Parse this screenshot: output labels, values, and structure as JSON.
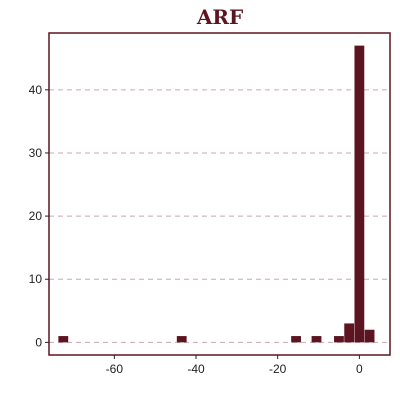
{
  "chart_data": {
    "type": "bar",
    "title": "ARF",
    "xlabel": "",
    "ylabel": "",
    "xlim": [
      -76,
      7.5
    ],
    "ylim": [
      -2,
      49
    ],
    "x_ticks": [
      -60,
      -40,
      -20,
      0
    ],
    "y_ticks": [
      0,
      10,
      20,
      30,
      40
    ],
    "bin_width": 2.4,
    "bins": [
      {
        "x": -72.5,
        "value": 1
      },
      {
        "x": -43.5,
        "value": 1
      },
      {
        "x": -15.5,
        "value": 1
      },
      {
        "x": -10.5,
        "value": 1
      },
      {
        "x": -5,
        "value": 1
      },
      {
        "x": -2.5,
        "value": 3
      },
      {
        "x": 0,
        "value": 47
      },
      {
        "x": 2.5,
        "value": 2
      }
    ],
    "grid": "horizontal-dashed",
    "colors": {
      "bar": "#5c1520",
      "frame": "#5c1520",
      "grid": "#c9a8ad",
      "title": "#5c1520"
    }
  }
}
